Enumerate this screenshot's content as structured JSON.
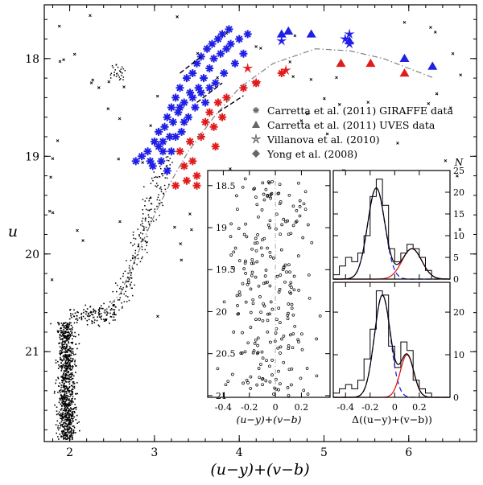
{
  "chart_data": {
    "type": "scatter",
    "main": {
      "xlabel": "(u−y)+(v−b)",
      "ylabel": "u",
      "xlim": [
        1.7,
        6.8
      ],
      "ylim": [
        17.45,
        21.92
      ],
      "y_inverted": true,
      "xticks": [
        "2",
        "3",
        "4",
        "5",
        "6"
      ],
      "yticks": [
        "18",
        "19",
        "20",
        "21"
      ],
      "legend": {
        "placement": "right",
        "entries": [
          {
            "label": "Carretta et al. (2011) GIRAFFE data",
            "marker": "asterisk"
          },
          {
            "label": "Carretta et al. (2011) UVES data",
            "marker": "triangle"
          },
          {
            "label": "Villanova et al. (2010)",
            "marker": "star"
          },
          {
            "label": "Yong et al. (2008)",
            "marker": "diamond"
          }
        ]
      },
      "colors": {
        "blue": "#1f1fe6",
        "red": "#e11b1b",
        "black": "#000000",
        "fiducial": "#808080"
      },
      "fiducial_line": {
        "x": [
          2.4,
          2.6,
          2.8,
          3.0,
          3.2,
          3.4,
          3.7,
          4.0,
          4.4,
          4.9,
          5.3,
          5.7,
          6.0,
          6.3
        ],
        "y": [
          20.6,
          20.4,
          20.0,
          19.6,
          19.25,
          18.95,
          18.6,
          18.3,
          18.05,
          17.9,
          17.92,
          18.0,
          18.1,
          18.2
        ]
      },
      "blue_giraffe": [
        [
          2.78,
          19.05
        ],
        [
          2.85,
          19.0
        ],
        [
          2.92,
          18.95
        ],
        [
          2.98,
          19.1
        ],
        [
          3.0,
          18.85
        ],
        [
          3.05,
          18.9
        ],
        [
          3.08,
          19.05
        ],
        [
          3.12,
          18.7
        ],
        [
          3.15,
          18.6
        ],
        [
          3.18,
          18.8
        ],
        [
          3.2,
          18.5
        ],
        [
          3.22,
          18.65
        ],
        [
          3.25,
          18.4
        ],
        [
          3.28,
          18.55
        ],
        [
          3.3,
          18.3
        ],
        [
          3.32,
          18.75
        ],
        [
          3.35,
          18.45
        ],
        [
          3.38,
          18.2
        ],
        [
          3.4,
          18.6
        ],
        [
          3.42,
          18.35
        ],
        [
          3.45,
          18.15
        ],
        [
          3.48,
          18.5
        ],
        [
          3.5,
          18.05
        ],
        [
          3.52,
          18.3
        ],
        [
          3.55,
          17.98
        ],
        [
          3.58,
          18.2
        ],
        [
          3.6,
          18.45
        ],
        [
          3.62,
          17.9
        ],
        [
          3.65,
          18.1
        ],
        [
          3.68,
          17.85
        ],
        [
          3.7,
          18.0
        ],
        [
          3.72,
          18.25
        ],
        [
          3.75,
          17.8
        ],
        [
          3.78,
          17.95
        ],
        [
          3.8,
          17.75
        ],
        [
          3.82,
          18.15
        ],
        [
          3.85,
          17.9
        ],
        [
          3.88,
          17.7
        ],
        [
          3.9,
          17.85
        ],
        [
          3.95,
          18.05
        ],
        [
          4.0,
          17.8
        ],
        [
          4.05,
          17.95
        ],
        [
          4.1,
          17.75
        ],
        [
          3.1,
          18.95
        ],
        [
          3.15,
          19.15
        ],
        [
          3.05,
          18.75
        ],
        [
          3.25,
          18.8
        ],
        [
          3.35,
          18.65
        ],
        [
          3.2,
          18.95
        ],
        [
          2.95,
          19.05
        ],
        [
          3.1,
          18.85
        ],
        [
          3.3,
          18.5
        ],
        [
          3.45,
          18.4
        ],
        [
          3.55,
          18.35
        ],
        [
          3.65,
          18.3
        ]
      ],
      "red_giraffe": [
        [
          3.3,
          18.95
        ],
        [
          3.35,
          19.1
        ],
        [
          3.38,
          19.25
        ],
        [
          3.42,
          18.85
        ],
        [
          3.5,
          19.2
        ],
        [
          3.55,
          18.8
        ],
        [
          3.6,
          18.65
        ],
        [
          3.65,
          18.55
        ],
        [
          3.7,
          18.7
        ],
        [
          3.75,
          18.45
        ],
        [
          3.8,
          18.6
        ],
        [
          3.85,
          18.4
        ],
        [
          4.05,
          18.3
        ],
        [
          4.2,
          18.25
        ],
        [
          4.5,
          18.15
        ],
        [
          3.25,
          19.3
        ],
        [
          3.45,
          19.05
        ],
        [
          3.5,
          19.3
        ],
        [
          3.72,
          18.9
        ]
      ],
      "blue_uves": [
        [
          4.5,
          17.75
        ],
        [
          4.58,
          17.72
        ],
        [
          4.85,
          17.75
        ],
        [
          5.3,
          17.82
        ],
        [
          5.95,
          18.0
        ],
        [
          6.28,
          18.08
        ]
      ],
      "red_uves": [
        [
          5.2,
          18.05
        ],
        [
          5.55,
          18.05
        ],
        [
          5.95,
          18.15
        ]
      ],
      "blue_villanova": [
        [
          4.5,
          17.82
        ],
        [
          5.25,
          17.8
        ],
        [
          5.3,
          17.85
        ],
        [
          5.3,
          17.75
        ]
      ],
      "red_villanova": [
        [
          4.1,
          18.1
        ],
        [
          4.2,
          18.25
        ],
        [
          4.55,
          18.12
        ]
      ]
    },
    "inset_left": {
      "xlabel": "(u−y)+(v−b)",
      "xlim": [
        -0.52,
        0.42
      ],
      "ylim": [
        18.32,
        21.02
      ],
      "y_inverted": true,
      "xticks": [
        "-0.4",
        "-0.2",
        "0",
        "0.2"
      ],
      "yticks": [
        "18.5",
        "19",
        "19.5",
        "20",
        "20.5",
        "21"
      ],
      "vertical_line_x": 0
    },
    "inset_right_top": {
      "ylim": [
        0,
        25
      ],
      "yticks": [
        "0",
        "5",
        "10",
        "15",
        "20",
        "25"
      ],
      "ylabel": "N",
      "xlim": [
        -0.5,
        0.45
      ],
      "histogram_bins": [
        -0.5,
        -0.45,
        -0.4,
        -0.35,
        -0.3,
        -0.25,
        -0.2,
        -0.15,
        -0.1,
        -0.05,
        0.0,
        0.05,
        0.1,
        0.15,
        0.2,
        0.25,
        0.3
      ],
      "histogram_counts": [
        1,
        3,
        5,
        4,
        6,
        10,
        19,
        23,
        17,
        7,
        4,
        6,
        8,
        7,
        5,
        2
      ],
      "gaussian_blue": {
        "mu": -0.15,
        "sigma": 0.07,
        "amp": 21
      },
      "gaussian_red": {
        "mu": 0.14,
        "sigma": 0.08,
        "amp": 7
      }
    },
    "inset_right_bottom": {
      "ylim": [
        0,
        27
      ],
      "yticks": [
        "0",
        "10",
        "20"
      ],
      "xlabel": "Δ((u−y)+(v−b))",
      "xlim": [
        -0.5,
        0.45
      ],
      "xticks": [
        "-0.4",
        "-0.2",
        "0",
        "0.2"
      ],
      "histogram_bins": [
        -0.5,
        -0.45,
        -0.4,
        -0.35,
        -0.3,
        -0.25,
        -0.2,
        -0.15,
        -0.1,
        -0.05,
        0.0,
        0.05,
        0.1,
        0.15,
        0.2,
        0.25,
        0.3
      ],
      "histogram_counts": [
        1,
        2,
        3,
        2,
        4,
        9,
        16,
        25,
        24,
        12,
        7,
        13,
        11,
        4,
        2,
        1
      ],
      "gaussian_blue": {
        "mu": -0.1,
        "sigma": 0.065,
        "amp": 24
      },
      "gaussian_red": {
        "mu": 0.1,
        "sigma": 0.055,
        "amp": 10
      }
    }
  }
}
